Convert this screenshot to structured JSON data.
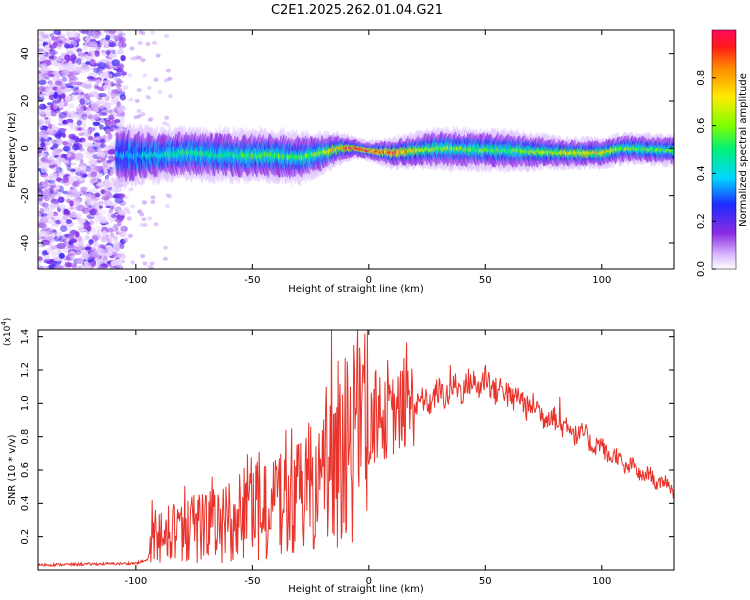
{
  "title": "C2E1.2025.262.01.04.G21",
  "chart_data": [
    {
      "type": "heatmap",
      "name": "spectrogram",
      "xlabel": "Height of straight line (km)",
      "ylabel": "Frequency (Hz)",
      "xlim": [
        -142,
        131
      ],
      "ylim": [
        -51,
        50
      ],
      "x_ticks": [
        -100,
        -50,
        0,
        50,
        100
      ],
      "y_ticks": [
        -40,
        -20,
        0,
        20,
        40
      ],
      "colorbar": {
        "label": "Normalized spectral amplitude",
        "range": [
          0,
          1
        ],
        "ticks": [
          "0.0",
          "0.2",
          "0.4",
          "0.6",
          "0.8"
        ],
        "tick_values": [
          0.0,
          0.2,
          0.4,
          0.6,
          0.8
        ]
      },
      "signal_track": [
        {
          "x": -105,
          "freq": -3,
          "spread": 6,
          "amp": 0.35
        },
        {
          "x": -90,
          "freq": -3,
          "spread": 5,
          "amp": 0.45
        },
        {
          "x": -80,
          "freq": -2,
          "spread": 5,
          "amp": 0.5
        },
        {
          "x": -60,
          "freq": -3,
          "spread": 5,
          "amp": 0.5
        },
        {
          "x": -40,
          "freq": -3,
          "spread": 5,
          "amp": 0.55
        },
        {
          "x": -30,
          "freq": -4,
          "spread": 5,
          "amp": 0.55
        },
        {
          "x": -20,
          "freq": -2,
          "spread": 4,
          "amp": 0.6
        },
        {
          "x": -12,
          "freq": 0,
          "spread": 3,
          "amp": 0.8
        },
        {
          "x": -5,
          "freq": 0,
          "spread": 2,
          "amp": 0.95
        },
        {
          "x": 0,
          "freq": -1,
          "spread": 2,
          "amp": 0.9
        },
        {
          "x": 10,
          "freq": -2,
          "spread": 3,
          "amp": 0.85
        },
        {
          "x": 30,
          "freq": 0,
          "spread": 4,
          "amp": 0.6
        },
        {
          "x": 60,
          "freq": -1,
          "spread": 4,
          "amp": 0.55
        },
        {
          "x": 85,
          "freq": -2,
          "spread": 3,
          "amp": 0.7
        },
        {
          "x": 100,
          "freq": -2,
          "spread": 3,
          "amp": 0.75
        },
        {
          "x": 110,
          "freq": 0,
          "spread": 3,
          "amp": 0.6
        },
        {
          "x": 131,
          "freq": -1,
          "spread": 3,
          "amp": 0.55
        }
      ]
    },
    {
      "type": "line",
      "name": "snr",
      "series_color": "#e8332b",
      "xlabel": "Height of straight line (km)",
      "ylabel": "SNR (10 * v/v)",
      "y_scale_label": "(x10",
      "y_scale_exponent": "4",
      "xlim": [
        -142,
        131
      ],
      "ylim": [
        0,
        14400
      ],
      "x_ticks": [
        -100,
        -50,
        0,
        50,
        100
      ],
      "y_ticks": [
        2000,
        4000,
        6000,
        8000,
        10000,
        12000,
        14000
      ],
      "y_tick_labels": [
        "0.2",
        "0.4",
        "0.6",
        "0.8",
        "1.0",
        "1.2",
        "1.4"
      ],
      "envelope": [
        {
          "x": -142,
          "y": 300
        },
        {
          "x": -100,
          "y": 400
        },
        {
          "x": -95,
          "y": 600
        },
        {
          "x": -92,
          "y": 2000
        },
        {
          "x": -85,
          "y": 2200
        },
        {
          "x": -60,
          "y": 2800
        },
        {
          "x": -45,
          "y": 3500
        },
        {
          "x": -30,
          "y": 4200
        },
        {
          "x": -20,
          "y": 5000
        },
        {
          "x": -10,
          "y": 6500
        },
        {
          "x": 0,
          "y": 8200
        },
        {
          "x": 10,
          "y": 9000
        },
        {
          "x": 20,
          "y": 9800
        },
        {
          "x": 30,
          "y": 10500
        },
        {
          "x": 40,
          "y": 11000
        },
        {
          "x": 50,
          "y": 11300
        },
        {
          "x": 60,
          "y": 10500
        },
        {
          "x": 70,
          "y": 9800
        },
        {
          "x": 80,
          "y": 9000
        },
        {
          "x": 90,
          "y": 8200
        },
        {
          "x": 100,
          "y": 7300
        },
        {
          "x": 110,
          "y": 6300
        },
        {
          "x": 120,
          "y": 5600
        },
        {
          "x": 131,
          "y": 4900
        }
      ],
      "peaks": [
        {
          "x": -93,
          "y": 4200
        },
        {
          "x": -75,
          "y": 4500
        },
        {
          "x": -60,
          "y": 5200
        },
        {
          "x": -48,
          "y": 6500
        },
        {
          "x": -40,
          "y": 6600
        },
        {
          "x": -33,
          "y": 8500
        },
        {
          "x": -25,
          "y": 8600
        },
        {
          "x": -16,
          "y": 14400
        },
        {
          "x": -8,
          "y": 11000
        },
        {
          "x": 3,
          "y": 12000
        },
        {
          "x": 8,
          "y": 12600
        },
        {
          "x": 35,
          "y": 12300
        },
        {
          "x": 50,
          "y": 12300
        },
        {
          "x": 60,
          "y": 11200
        },
        {
          "x": 82,
          "y": 10400
        }
      ]
    }
  ]
}
